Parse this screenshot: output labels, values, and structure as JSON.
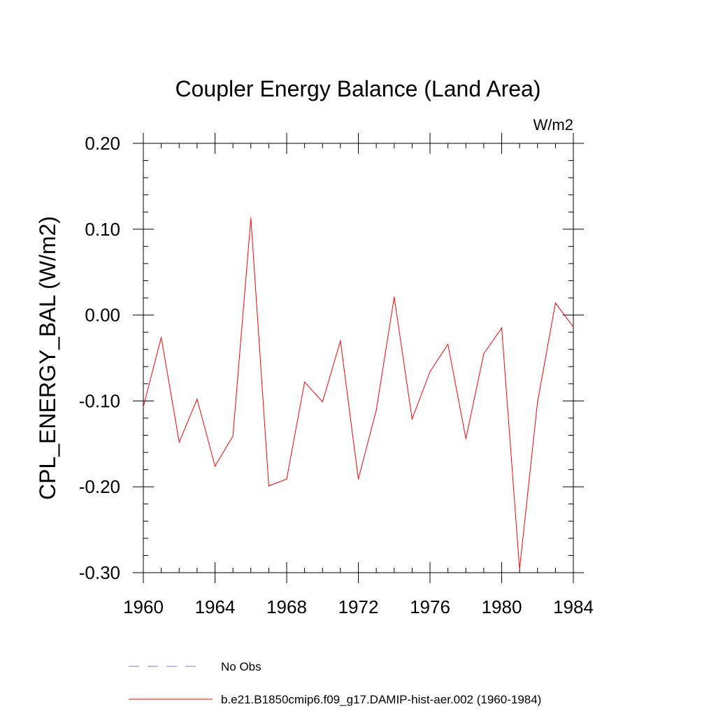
{
  "chart_data": {
    "type": "line",
    "title": "Coupler Energy Balance (Land Area)",
    "units_label": "W/m2",
    "ylabel": "CPL_ENERGY_BAL  (W/m2)",
    "xlabel": "",
    "xlim": [
      1960,
      1984
    ],
    "ylim": [
      -0.3,
      0.2
    ],
    "x_ticks": [
      1960,
      1964,
      1968,
      1972,
      1976,
      1980,
      1984
    ],
    "x_tick_labels": [
      "1960",
      "1964",
      "1968",
      "1972",
      "1976",
      "1980",
      "1984"
    ],
    "y_ticks": [
      -0.3,
      -0.2,
      -0.1,
      0.0,
      0.1,
      0.2
    ],
    "y_tick_labels": [
      "-0.30",
      "-0.20",
      "-0.10",
      "0.00",
      "0.10",
      "0.20"
    ],
    "grid": false,
    "legend_position": "bottom",
    "series": [
      {
        "name": "b.e21.B1850cmip6.f09_g17.DAMIP-hist-aer.002 (1960-1984)",
        "color": "#ff0000",
        "style": "solid",
        "x": [
          1960,
          1961,
          1962,
          1963,
          1964,
          1965,
          1966,
          1967,
          1968,
          1969,
          1970,
          1971,
          1972,
          1973,
          1974,
          1975,
          1976,
          1977,
          1978,
          1979,
          1980,
          1981,
          1982,
          1983,
          1984
        ],
        "values": [
          -0.107,
          -0.026,
          -0.148,
          -0.098,
          -0.176,
          -0.141,
          0.113,
          -0.199,
          -0.191,
          -0.078,
          -0.101,
          -0.03,
          -0.191,
          -0.111,
          0.021,
          -0.121,
          -0.066,
          -0.034,
          -0.144,
          -0.045,
          -0.015,
          -0.296,
          -0.101,
          0.014,
          -0.014
        ]
      }
    ],
    "legend": [
      {
        "label": "No Obs",
        "color": "#7777cc",
        "style": "dashed"
      },
      {
        "label": "b.e21.B1850cmip6.f09_g17.DAMIP-hist-aer.002 (1960-1984)",
        "color": "#ff0000",
        "style": "solid"
      }
    ]
  }
}
